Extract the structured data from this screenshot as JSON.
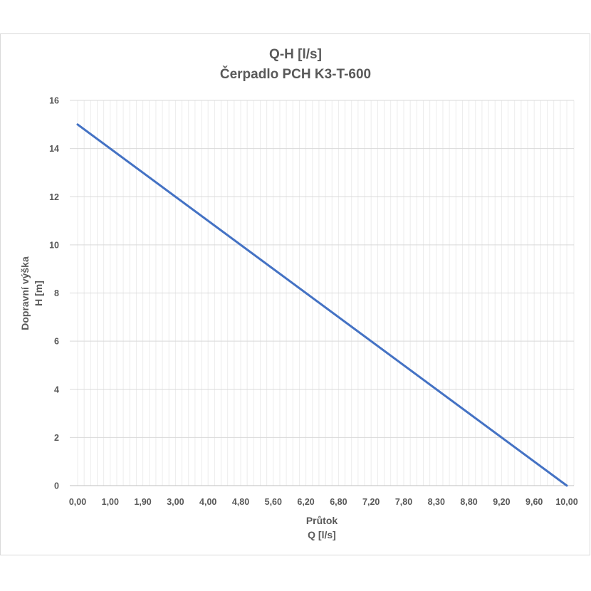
{
  "chart_data": {
    "type": "line",
    "title": [
      "Q-H  [l/s]",
      "Čerpadlo PCH K3-T-600"
    ],
    "xlabel": [
      "Průtok",
      "Q [l/s]"
    ],
    "ylabel": [
      "Dopravní výška",
      "H [m]"
    ],
    "x_tick_labels": [
      "0,00",
      "1,00",
      "1,90",
      "3,00",
      "4,00",
      "4,80",
      "5,60",
      "6,20",
      "6,80",
      "7,20",
      "7,80",
      "8,30",
      "8,80",
      "9,20",
      "9,60",
      "10,00"
    ],
    "y_ticks": [
      0,
      2,
      4,
      6,
      8,
      10,
      12,
      14,
      16
    ],
    "ylim": [
      0,
      16
    ],
    "grid": true,
    "series": [
      {
        "x": [
          0,
          10
        ],
        "y": [
          15,
          0
        ]
      }
    ],
    "colors": {
      "line": "#4472c4",
      "grid": "#d9d9d9",
      "text": "#595959"
    }
  }
}
